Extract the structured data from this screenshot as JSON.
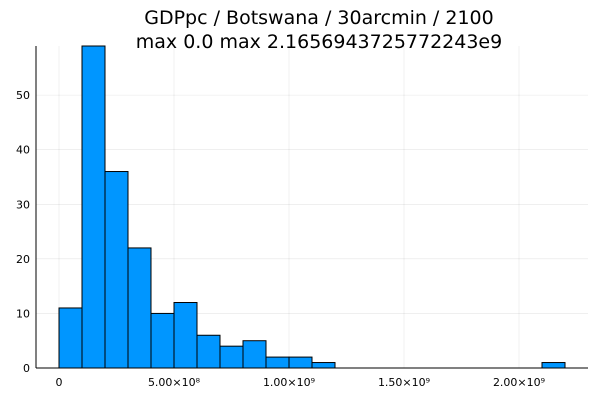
{
  "chart_data": {
    "type": "bar",
    "title": "GDPpc / Botswana / 30arcmin / 2100",
    "subtitle": "max 0.0  max 2.1656943725772243e9",
    "xlabel": "",
    "ylabel": "",
    "bin_width": 100000000,
    "bin_starts": [
      0,
      100000000,
      200000000,
      300000000,
      400000000,
      500000000,
      600000000,
      700000000,
      800000000,
      900000000,
      1000000000,
      1100000000,
      2100000000
    ],
    "values": [
      11,
      59,
      36,
      22,
      10,
      12,
      6,
      4,
      5,
      2,
      2,
      1,
      1
    ],
    "xlim": [
      -100000000,
      2300000000
    ],
    "ylim": [
      0,
      59
    ],
    "x_ticks": [
      {
        "value": 0,
        "label": "0"
      },
      {
        "value": 500000000,
        "label": "5.00×10⁸"
      },
      {
        "value": 1000000000,
        "label": "1.00×10⁹"
      },
      {
        "value": 1500000000,
        "label": "1.50×10⁹"
      },
      {
        "value": 2000000000,
        "label": "2.00×10⁹"
      }
    ],
    "y_ticks": [
      0,
      10,
      20,
      30,
      40,
      50
    ],
    "grid": true,
    "legend": "none",
    "colors": {
      "bar_fill": "#0096ff",
      "bar_stroke": "#000000"
    }
  }
}
